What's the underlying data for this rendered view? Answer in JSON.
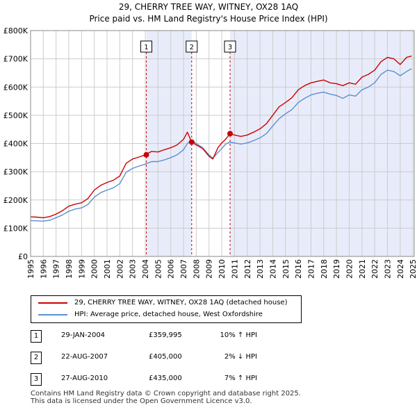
{
  "title_line1": "29, CHERRY TREE WAY, WITNEY, OX28 1AQ",
  "title_line2": "Price paid vs. HM Land Registry's House Price Index (HPI)",
  "colors": {
    "price_line": "#cc0000",
    "hpi_line": "#5b8fcf",
    "shade": "#e8ecfa",
    "marker_line": "#cc0000",
    "grid": "#cccccc"
  },
  "chart_data": {
    "type": "line",
    "y_ticks": [
      {
        "value": 0,
        "label": "£0"
      },
      {
        "value": 100000,
        "label": "£100K"
      },
      {
        "value": 200000,
        "label": "£200K"
      },
      {
        "value": 300000,
        "label": "£300K"
      },
      {
        "value": 400000,
        "label": "£400K"
      },
      {
        "value": 500000,
        "label": "£500K"
      },
      {
        "value": 600000,
        "label": "£600K"
      },
      {
        "value": 700000,
        "label": "£700K"
      },
      {
        "value": 800000,
        "label": "£800K"
      }
    ],
    "x_ticks": [
      "1995",
      "1996",
      "1997",
      "1998",
      "1999",
      "2000",
      "2001",
      "2002",
      "2003",
      "2004",
      "2005",
      "2006",
      "2007",
      "2008",
      "2009",
      "2010",
      "2011",
      "2012",
      "2013",
      "2014",
      "2015",
      "2016",
      "2017",
      "2018",
      "2019",
      "2020",
      "2021",
      "2022",
      "2023",
      "2024",
      "2025"
    ],
    "xlim": [
      1995.0,
      2025.1
    ],
    "ylim": [
      0,
      800000
    ],
    "grid": true,
    "shaded_ranges": [
      [
        2004.08,
        2007.64
      ],
      [
        2010.65,
        2025.0
      ]
    ],
    "series": [
      {
        "name": "29, CHERRY TREE WAY, WITNEY, OX28 1AQ (detached house)",
        "x": [
          1995.0,
          1995.5,
          1996.0,
          1996.5,
          1997.0,
          1997.5,
          1998.0,
          1998.5,
          1999.0,
          1999.5,
          2000.0,
          2000.5,
          2001.0,
          2001.5,
          2002.0,
          2002.5,
          2003.0,
          2003.5,
          2004.0,
          2004.5,
          2005.0,
          2005.5,
          2006.0,
          2006.5,
          2007.0,
          2007.3,
          2007.64,
          2008.0,
          2008.5,
          2009.0,
          2009.3,
          2009.7,
          2010.0,
          2010.3,
          2010.65,
          2011.0,
          2011.5,
          2012.0,
          2012.5,
          2013.0,
          2013.5,
          2014.0,
          2014.5,
          2015.0,
          2015.5,
          2016.0,
          2016.5,
          2017.0,
          2017.5,
          2018.0,
          2018.5,
          2019.0,
          2019.5,
          2020.0,
          2020.5,
          2021.0,
          2021.5,
          2022.0,
          2022.5,
          2023.0,
          2023.5,
          2024.0,
          2024.5,
          2024.9
        ],
        "values": [
          140000,
          139000,
          137000,
          141000,
          150000,
          162000,
          178000,
          185000,
          190000,
          205000,
          235000,
          252000,
          262000,
          270000,
          285000,
          330000,
          345000,
          352000,
          359995,
          372000,
          370000,
          378000,
          385000,
          395000,
          415000,
          440000,
          405000,
          395000,
          382000,
          355000,
          345000,
          385000,
          402000,
          415000,
          435000,
          430000,
          425000,
          430000,
          440000,
          452000,
          470000,
          500000,
          530000,
          545000,
          562000,
          590000,
          605000,
          615000,
          620000,
          625000,
          615000,
          612000,
          605000,
          615000,
          610000,
          635000,
          645000,
          660000,
          690000,
          705000,
          700000,
          680000,
          705000,
          710000
        ]
      },
      {
        "name": "HPI: Average price, detached house, West Oxfordshire",
        "x": [
          1995.0,
          1995.5,
          1996.0,
          1996.5,
          1997.0,
          1997.5,
          1998.0,
          1998.5,
          1999.0,
          1999.5,
          2000.0,
          2000.5,
          2001.0,
          2001.5,
          2002.0,
          2002.5,
          2003.0,
          2003.5,
          2004.0,
          2004.5,
          2005.0,
          2005.5,
          2006.0,
          2006.5,
          2007.0,
          2007.3,
          2007.64,
          2008.0,
          2008.5,
          2009.0,
          2009.3,
          2009.7,
          2010.0,
          2010.3,
          2010.65,
          2011.0,
          2011.5,
          2012.0,
          2012.5,
          2013.0,
          2013.5,
          2014.0,
          2014.5,
          2015.0,
          2015.5,
          2016.0,
          2016.5,
          2017.0,
          2017.5,
          2018.0,
          2018.5,
          2019.0,
          2019.5,
          2020.0,
          2020.5,
          2021.0,
          2021.5,
          2022.0,
          2022.5,
          2023.0,
          2023.5,
          2024.0,
          2024.5,
          2024.9
        ],
        "values": [
          127000,
          126000,
          125000,
          128000,
          137000,
          147000,
          160000,
          168000,
          172000,
          184000,
          210000,
          226000,
          235000,
          243000,
          258000,
          298000,
          312000,
          320000,
          327000,
          336000,
          336000,
          342000,
          350000,
          360000,
          378000,
          400000,
          413000,
          400000,
          385000,
          360000,
          348000,
          368000,
          382000,
          398000,
          405000,
          402000,
          398000,
          402000,
          410000,
          420000,
          435000,
          462000,
          488000,
          505000,
          520000,
          545000,
          560000,
          572000,
          578000,
          582000,
          575000,
          570000,
          560000,
          572000,
          568000,
          590000,
          600000,
          615000,
          645000,
          660000,
          655000,
          640000,
          655000,
          665000
        ]
      }
    ],
    "transactions": [
      {
        "num": "1",
        "x": 2004.08,
        "value": 359995
      },
      {
        "num": "2",
        "x": 2007.64,
        "value": 405000
      },
      {
        "num": "3",
        "x": 2010.65,
        "value": 435000
      }
    ]
  },
  "legend": {
    "series1": "29, CHERRY TREE WAY, WITNEY, OX28 1AQ (detached house)",
    "series2": "HPI: Average price, detached house, West Oxfordshire"
  },
  "table": [
    {
      "num": "1",
      "date": "29-JAN-2004",
      "price": "£359,995",
      "hpi": "10% ↑ HPI"
    },
    {
      "num": "2",
      "date": "22-AUG-2007",
      "price": "£405,000",
      "hpi": "2% ↓ HPI"
    },
    {
      "num": "3",
      "date": "27-AUG-2010",
      "price": "£435,000",
      "hpi": "7% ↑ HPI"
    }
  ],
  "footer": {
    "line1": "Contains HM Land Registry data © Crown copyright and database right 2025.",
    "line2": "This data is licensed under the Open Government Licence v3.0."
  }
}
